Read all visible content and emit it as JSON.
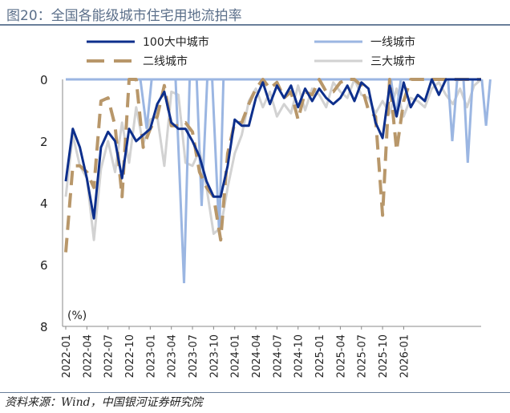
{
  "header": {
    "title": "图20：全国各能级城市住宅用地流拍率"
  },
  "footer": {
    "source": "资料来源：Wind，中国银河证券研究院"
  },
  "chart_data": {
    "type": "line",
    "title": "全国各能级城市住宅用地流拍率",
    "ylabel": "(%)",
    "ylim": [
      0,
      8
    ],
    "y_inverted": true,
    "yticks": [
      0,
      2,
      4,
      6,
      8
    ],
    "grid": false,
    "x_tick_labels": [
      "2022-01",
      "2022-04",
      "2022-07",
      "2022-10",
      "2023-01",
      "2023-04",
      "2023-07",
      "2023-10",
      "2024-01",
      "2024-04",
      "2024-07",
      "2024-10",
      "2025-01",
      "2025-04",
      "2025-07",
      "2025-10",
      "2026-01"
    ],
    "legend": {
      "position": "top",
      "columns": 2
    },
    "series": [
      {
        "name": "100大中城市",
        "color": "#0d2f8c",
        "dash": "solid",
        "width": 3,
        "values": [
          3.3,
          1.6,
          2.2,
          3.2,
          4.5,
          2.2,
          1.7,
          2.0,
          3.2,
          1.6,
          2.0,
          1.8,
          1.6,
          0.8,
          0.4,
          1.4,
          1.6,
          1.6,
          2.0,
          2.5,
          3.3,
          3.8,
          3.8,
          2.8,
          1.3,
          1.5,
          1.5,
          0.6,
          0.1,
          0.8,
          0.2,
          0.6,
          0.2,
          0.9,
          0.3,
          0.7,
          0.3,
          0.6,
          0.8,
          0.6,
          0.2,
          0.7,
          0.1,
          0.3,
          1.4,
          1.9,
          0.2,
          1.2,
          0.1,
          0.9,
          0.5,
          0.7,
          0.0,
          0.5,
          0.0,
          0.0,
          0.0,
          0.0,
          0.0,
          0.0
        ]
      },
      {
        "name": "一线城市",
        "color": "#9bb6e2",
        "dash": "solid",
        "width": 3,
        "values": [
          0,
          0,
          0,
          0,
          0,
          0,
          0,
          0,
          0,
          0,
          0,
          0,
          0,
          0,
          0,
          0,
          0,
          0,
          0,
          0,
          0,
          0,
          0,
          0,
          0,
          0,
          0,
          0,
          0,
          0,
          0,
          0,
          0,
          0,
          0,
          0,
          0,
          0,
          0,
          0,
          0,
          0,
          0,
          0,
          0,
          0,
          0,
          0,
          0,
          0,
          0,
          0,
          0,
          0,
          0,
          0,
          0,
          0,
          0,
          0
        ],
        "spikes": [
          [
            10.6,
            0
          ],
          [
            11.5,
            1.6
          ],
          [
            12.2,
            0
          ],
          [
            15.6,
            0
          ],
          [
            16.8,
            6.6
          ],
          [
            17.6,
            0
          ],
          [
            18.6,
            0
          ],
          [
            19.3,
            4.1
          ],
          [
            20.1,
            0
          ],
          [
            20.8,
            0
          ],
          [
            21.8,
            5.0
          ],
          [
            22.4,
            0
          ],
          [
            46.2,
            0
          ],
          [
            46.9,
            1.2
          ],
          [
            47.6,
            0
          ],
          [
            54.3,
            0
          ],
          [
            54.9,
            2.0
          ],
          [
            55.6,
            0
          ],
          [
            56.5,
            0
          ],
          [
            57.1,
            2.7
          ],
          [
            57.8,
            0
          ],
          [
            59.1,
            0
          ],
          [
            59.7,
            1.5
          ],
          [
            60.3,
            0
          ]
        ]
      },
      {
        "name": "二线城市",
        "color": "#b8976a",
        "dash": "dash",
        "width": 4,
        "values": [
          5.6,
          2.8,
          2.8,
          3.0,
          3.5,
          0.7,
          0.6,
          1.5,
          3.8,
          0.0,
          0.0,
          2.2,
          1.6,
          1.2,
          0.2,
          1.5,
          1.5,
          1.4,
          1.7,
          3.0,
          3.5,
          3.8,
          5.2,
          2.4,
          1.4,
          1.4,
          0.8,
          0.3,
          0.0,
          0.3,
          0.1,
          0.6,
          0.4,
          1.3,
          0.4,
          0.5,
          0.0,
          0.4,
          0.4,
          0.1,
          0.0,
          0.0,
          0.2,
          1.0,
          1.2,
          4.4,
          0.0,
          2.3,
          0.7,
          0.0,
          0.0,
          0.0,
          0.0,
          0.0,
          0.0,
          0.0,
          0.0,
          0.0,
          0.0,
          0.0
        ]
      },
      {
        "name": "三大城市",
        "color": "#d2d2d2",
        "dash": "solid",
        "width": 3,
        "values": [
          3.8,
          1.8,
          2.8,
          3.2,
          5.2,
          2.9,
          2.0,
          3.0,
          1.4,
          2.7,
          0.9,
          2.1,
          1.3,
          1.2,
          2.8,
          0.4,
          0.5,
          2.7,
          2.8,
          2.3,
          3.5,
          5.0,
          4.8,
          3.5,
          2.4,
          1.8,
          0.7,
          0.3,
          0.9,
          0.4,
          1.2,
          0.8,
          1.1,
          0.2,
          1.0,
          0.3,
          0.5,
          0.9,
          0.1,
          0.4,
          0.6,
          0.0,
          0.5,
          0.6,
          1.1,
          0.7,
          1.1,
          0.3,
          1.2,
          0.6,
          0.7,
          0.9,
          0.3,
          0.1,
          0.5,
          0.8,
          0.3,
          0.9,
          0.2,
          0.0
        ]
      }
    ]
  }
}
